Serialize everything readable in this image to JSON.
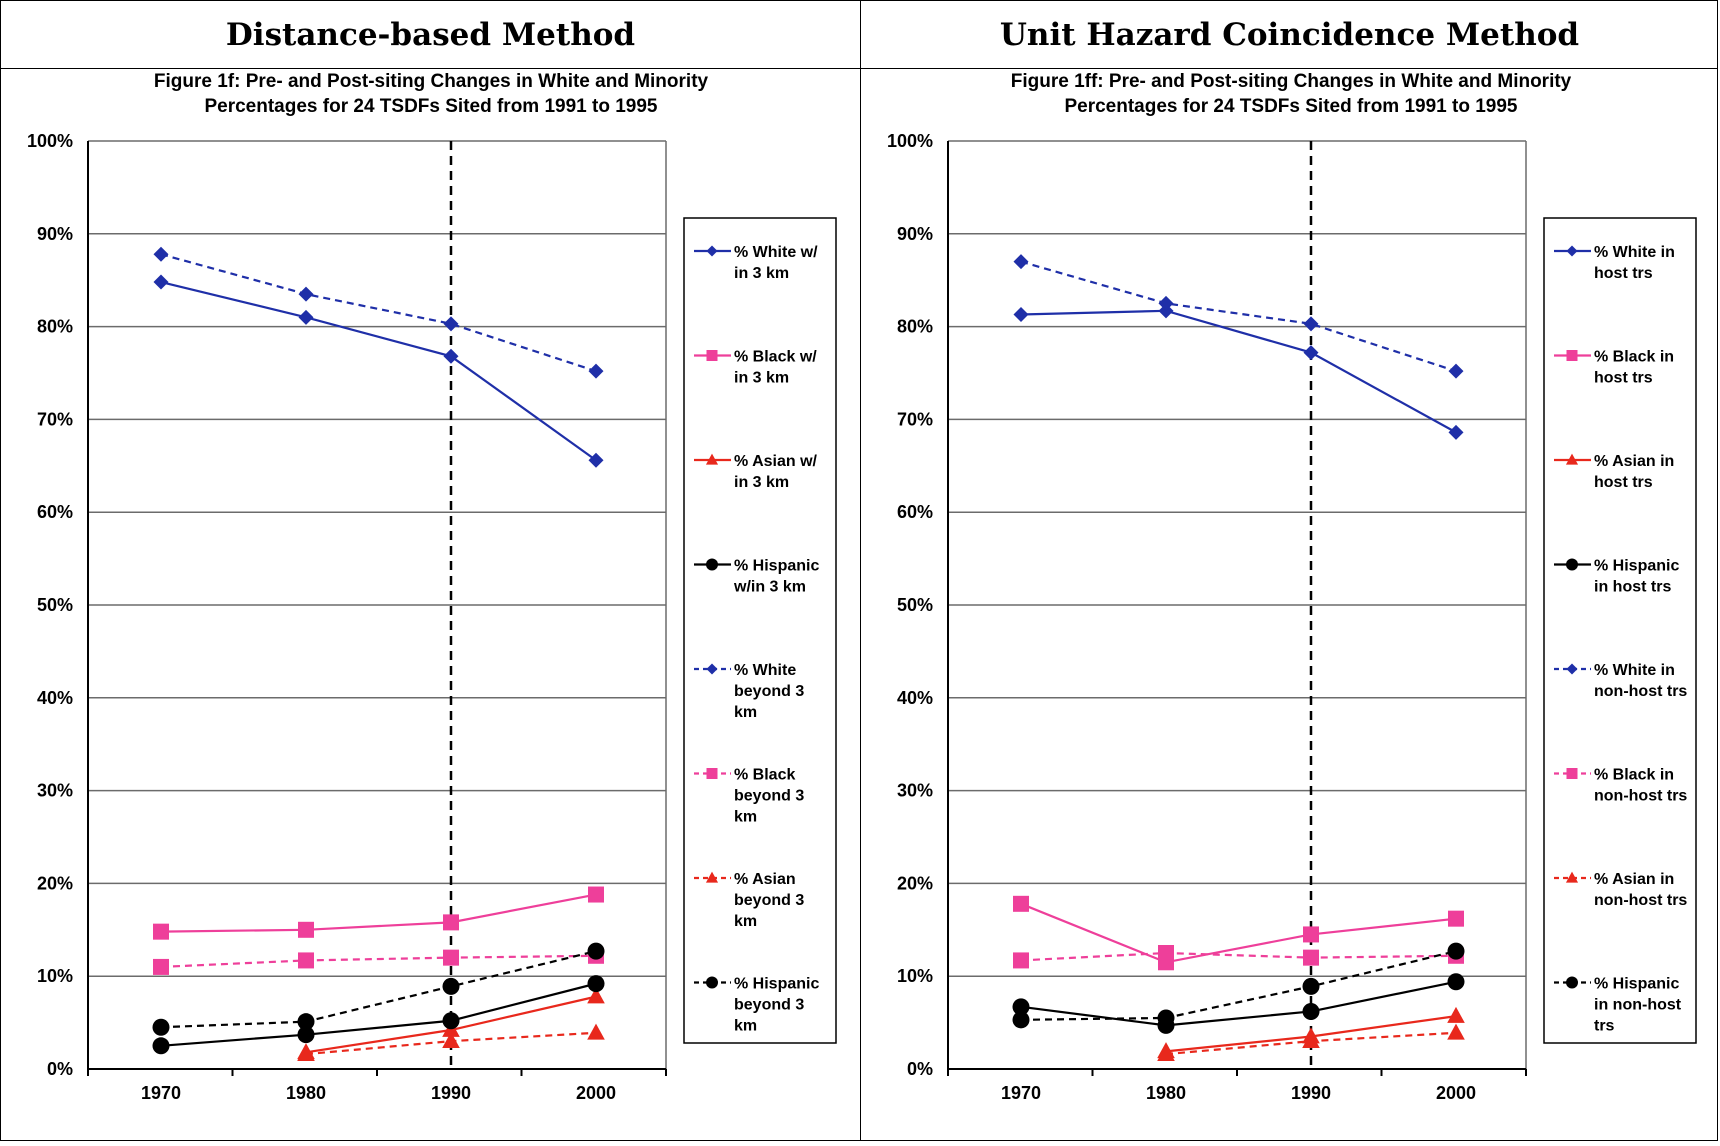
{
  "headers": {
    "left": "Distance-based Method",
    "right": "Unit Hazard Coincidence Method"
  },
  "chart_data": [
    {
      "type": "line",
      "title_lines": [
        "Figure 1f: Pre- and Post-siting Changes in White and Minority",
        "Percentages for 24 TSDFs Sited from 1991 to 1995"
      ],
      "categories": [
        "1970",
        "1980",
        "1990",
        "2000"
      ],
      "ylim": [
        0,
        100
      ],
      "yticks": [
        "0%",
        "10%",
        "20%",
        "30%",
        "40%",
        "50%",
        "60%",
        "70%",
        "80%",
        "90%",
        "100%"
      ],
      "grid": true,
      "legend_position": "right",
      "vline_at": "1990",
      "series": [
        {
          "legend_lines": [
            "% White w/",
            "in 3 km"
          ],
          "color": "#1f2fa8",
          "dash": false,
          "marker": "diamond",
          "values": [
            84.8,
            81.0,
            76.8,
            65.6
          ]
        },
        {
          "legend_lines": [
            "% Black w/",
            "in 3 km"
          ],
          "color": "#ee3f9a",
          "dash": false,
          "marker": "square",
          "values": [
            14.8,
            15.0,
            15.8,
            18.8
          ]
        },
        {
          "legend_lines": [
            "% Asian w/",
            "in 3 km"
          ],
          "color": "#e8281c",
          "dash": false,
          "marker": "triangle",
          "values": [
            null,
            1.8,
            4.2,
            7.8
          ]
        },
        {
          "legend_lines": [
            "% Hispanic",
            "w/in 3 km"
          ],
          "color": "#000000",
          "dash": false,
          "marker": "circle",
          "values": [
            2.5,
            3.7,
            5.2,
            9.2
          ]
        },
        {
          "legend_lines": [
            "% White",
            "beyond 3",
            "km"
          ],
          "color": "#1f2fa8",
          "dash": true,
          "marker": "diamond",
          "values": [
            87.8,
            83.5,
            80.3,
            75.2
          ]
        },
        {
          "legend_lines": [
            "% Black",
            "beyond 3",
            "km"
          ],
          "color": "#ee3f9a",
          "dash": true,
          "marker": "square",
          "values": [
            11.0,
            11.7,
            12.0,
            12.2
          ]
        },
        {
          "legend_lines": [
            "% Asian",
            "beyond 3",
            "km"
          ],
          "color": "#e8281c",
          "dash": true,
          "marker": "triangle",
          "values": [
            null,
            1.6,
            3.0,
            3.9
          ]
        },
        {
          "legend_lines": [
            "% Hispanic",
            "beyond 3",
            "km"
          ],
          "color": "#000000",
          "dash": true,
          "marker": "circle",
          "values": [
            4.5,
            5.1,
            8.9,
            12.7
          ]
        }
      ]
    },
    {
      "type": "line",
      "title_lines": [
        "Figure 1ff: Pre- and Post-siting Changes in White and Minority",
        "Percentages for 24 TSDFs Sited from 1991 to 1995"
      ],
      "categories": [
        "1970",
        "1980",
        "1990",
        "2000"
      ],
      "ylim": [
        0,
        100
      ],
      "yticks": [
        "0%",
        "10%",
        "20%",
        "30%",
        "40%",
        "50%",
        "60%",
        "70%",
        "80%",
        "90%",
        "100%"
      ],
      "grid": true,
      "legend_position": "right",
      "vline_at": "1990",
      "series": [
        {
          "legend_lines": [
            "% White in",
            "host trs"
          ],
          "color": "#1f2fa8",
          "dash": false,
          "marker": "diamond",
          "values": [
            81.3,
            81.7,
            77.2,
            68.6
          ]
        },
        {
          "legend_lines": [
            "% Black in",
            "host trs"
          ],
          "color": "#ee3f9a",
          "dash": false,
          "marker": "square",
          "values": [
            17.8,
            11.5,
            14.5,
            16.2
          ]
        },
        {
          "legend_lines": [
            "% Asian in",
            "host trs"
          ],
          "color": "#e8281c",
          "dash": false,
          "marker": "triangle",
          "values": [
            null,
            1.9,
            3.5,
            5.7
          ]
        },
        {
          "legend_lines": [
            "% Hispanic",
            "in host trs"
          ],
          "color": "#000000",
          "dash": false,
          "marker": "circle",
          "values": [
            6.7,
            4.7,
            6.2,
            9.4
          ]
        },
        {
          "legend_lines": [
            "% White in",
            "non-host trs"
          ],
          "color": "#1f2fa8",
          "dash": true,
          "marker": "diamond",
          "values": [
            87.0,
            82.5,
            80.3,
            75.2
          ]
        },
        {
          "legend_lines": [
            "% Black in",
            "non-host trs"
          ],
          "color": "#ee3f9a",
          "dash": true,
          "marker": "square",
          "values": [
            11.7,
            12.5,
            12.0,
            12.2
          ]
        },
        {
          "legend_lines": [
            "% Asian in",
            "non-host trs"
          ],
          "color": "#e8281c",
          "dash": true,
          "marker": "triangle",
          "values": [
            null,
            1.6,
            3.0,
            3.9
          ]
        },
        {
          "legend_lines": [
            "% Hispanic",
            "in non-host",
            "trs"
          ],
          "color": "#000000",
          "dash": true,
          "marker": "circle",
          "values": [
            5.3,
            5.5,
            8.9,
            12.7
          ]
        }
      ]
    }
  ]
}
